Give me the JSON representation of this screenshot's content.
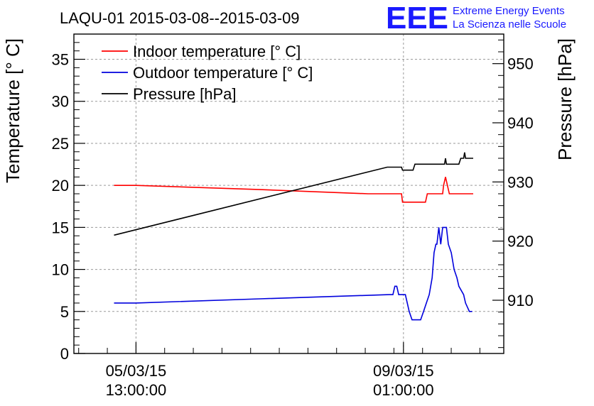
{
  "chart_data": {
    "type": "line",
    "title": "LAQU-01 2015-03-08--2015-03-09",
    "brand": {
      "logo": "EEE",
      "line1": "Extreme Energy Events",
      "line2": "La Scienza nelle Scuole",
      "color": "#1a1aff"
    },
    "ylabel_left": "Temperature [° C]",
    "ylabel_right": "Pressure [hPa]",
    "ylim_left": [
      0,
      38
    ],
    "ylim_right": [
      901,
      955
    ],
    "xlim_hours": [
      -6.5,
      38.5
    ],
    "yticks_left": [
      "0",
      "5",
      "10",
      "15",
      "20",
      "25",
      "30",
      "35"
    ],
    "yticks_right": [
      "910",
      "920",
      "930",
      "940",
      "950"
    ],
    "xticks": [
      {
        "hour": 0,
        "date": "05/03/15",
        "time": "13:00:00"
      },
      {
        "hour": 28,
        "date": "09/03/15",
        "time": "01:00:00"
      }
    ],
    "grid": true,
    "legend_position": "top-left",
    "series": [
      {
        "name": "Indoor temperature [° C]",
        "color": "#ff0000",
        "axis": "left",
        "points": [
          [
            -2.3,
            20
          ],
          [
            0,
            20
          ],
          [
            13,
            19.5
          ],
          [
            24.3,
            19
          ],
          [
            27.8,
            19
          ],
          [
            27.9,
            18
          ],
          [
            30.3,
            18
          ],
          [
            30.5,
            19
          ],
          [
            32.1,
            19
          ],
          [
            32.2,
            20
          ],
          [
            32.4,
            21
          ],
          [
            32.6,
            20
          ],
          [
            32.8,
            19
          ],
          [
            35.3,
            19
          ]
        ]
      },
      {
        "name": "Outdoor temperature [° C]",
        "color": "#0000dd",
        "axis": "left",
        "points": [
          [
            -2.3,
            6
          ],
          [
            0,
            6
          ],
          [
            13,
            6.5
          ],
          [
            26.5,
            7
          ],
          [
            26.9,
            7
          ],
          [
            27.1,
            8
          ],
          [
            27.3,
            8
          ],
          [
            27.5,
            7
          ],
          [
            28.2,
            7
          ],
          [
            28.4,
            6
          ],
          [
            28.6,
            5
          ],
          [
            28.9,
            4
          ],
          [
            29.4,
            4
          ],
          [
            29.8,
            4
          ],
          [
            30.1,
            5
          ],
          [
            30.4,
            6
          ],
          [
            30.7,
            7
          ],
          [
            31.0,
            9
          ],
          [
            31.2,
            12
          ],
          [
            31.4,
            13
          ],
          [
            31.5,
            13
          ],
          [
            31.7,
            15
          ],
          [
            31.9,
            13
          ],
          [
            32.1,
            15
          ],
          [
            32.2,
            15
          ],
          [
            32.5,
            15
          ],
          [
            32.7,
            13
          ],
          [
            33.0,
            12
          ],
          [
            33.3,
            10
          ],
          [
            33.6,
            9
          ],
          [
            33.8,
            8
          ],
          [
            34.3,
            7
          ],
          [
            34.5,
            6
          ],
          [
            34.9,
            5
          ],
          [
            35.2,
            5
          ]
        ]
      },
      {
        "name": "Pressure [hPa]",
        "color": "#000000",
        "axis": "right",
        "points": [
          [
            -2.3,
            921
          ],
          [
            26.3,
            932.5
          ],
          [
            27.8,
            932.5
          ],
          [
            27.9,
            932
          ],
          [
            29.0,
            932
          ],
          [
            29.2,
            933
          ],
          [
            31.5,
            933
          ],
          [
            32.3,
            933
          ],
          [
            32.4,
            934
          ],
          [
            32.5,
            933
          ],
          [
            33.8,
            933
          ],
          [
            34.0,
            934
          ],
          [
            34.3,
            934
          ],
          [
            34.4,
            935
          ],
          [
            34.5,
            934
          ],
          [
            35.3,
            934
          ]
        ]
      }
    ]
  }
}
